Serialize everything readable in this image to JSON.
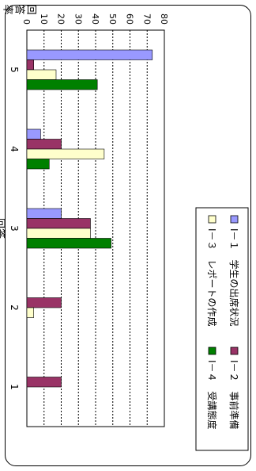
{
  "chart_data": {
    "type": "bar",
    "orientation": "rotated-90-clockwise",
    "categories": [
      "1",
      "2",
      "3",
      "4",
      "5"
    ],
    "xlabel": "回答",
    "ylabel": "回答率（％）",
    "ylim": [
      0,
      80
    ],
    "y_ticks": [
      "0",
      "10",
      "20",
      "30",
      "40",
      "50",
      "60",
      "70",
      "80"
    ],
    "grid": true,
    "legend_position": "right",
    "series": [
      {
        "name": "Ⅰ－１　学生の出席状況",
        "color": "#9999ff",
        "values": [
          0,
          0,
          20,
          8,
          73
        ]
      },
      {
        "name": "Ⅰ－２　事前準備",
        "color": "#993366",
        "values": [
          20,
          20,
          37,
          20,
          4
        ]
      },
      {
        "name": "Ⅰ－３　レポートの作成",
        "color": "#ffffcc",
        "values": [
          0,
          4,
          37,
          45,
          17
        ]
      },
      {
        "name": "Ⅰ－４　受講態度",
        "color": "#008000",
        "values": [
          0,
          0,
          49,
          13,
          41
        ]
      }
    ]
  }
}
